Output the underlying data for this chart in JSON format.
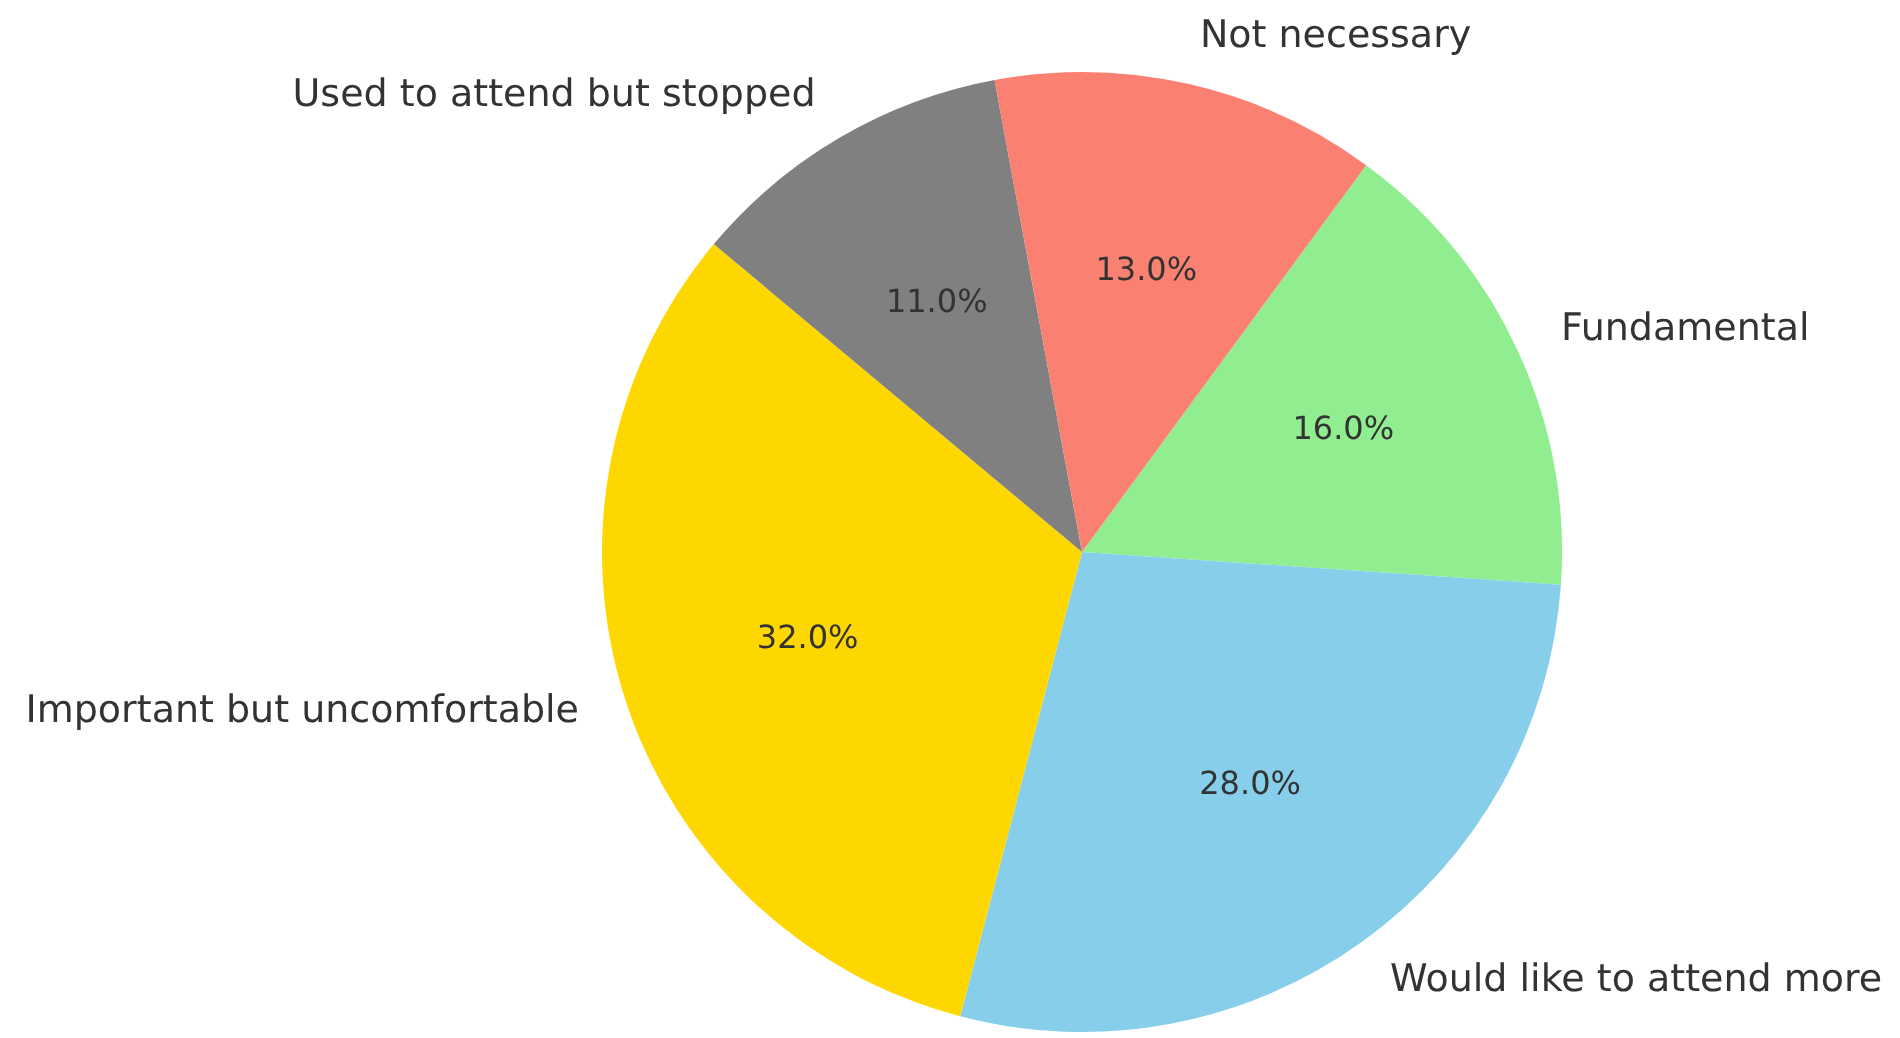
{
  "chart_data": {
    "type": "pie",
    "categories": [
      "Fundamental",
      "Would like to attend more",
      "Important but uncomfortable",
      "Used to attend but stopped",
      "Not necessary"
    ],
    "values": [
      16,
      28,
      32,
      11,
      13
    ],
    "colors": [
      "#90ee90",
      "#87ceeb",
      "#ffd700",
      "#808080",
      "#fa8072"
    ],
    "value_labels": [
      "16.0%",
      "28.0%",
      "32.0%",
      "11.0%",
      "13.0%"
    ]
  }
}
